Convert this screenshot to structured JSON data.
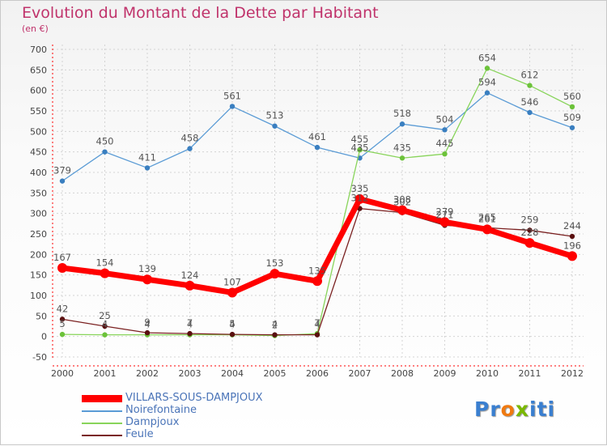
{
  "header": {
    "title": "Evolution du Montant de la Dette par Habitant",
    "subtitle": "(en €)"
  },
  "logo": {
    "text": "Proxiti",
    "letters": [
      "P",
      "r",
      "o",
      "x",
      "i",
      "t",
      "i"
    ],
    "colors": [
      "#3a7fd0",
      "#3a7fd0",
      "#f07a10",
      "#7ab800",
      "#3a7fd0",
      "#3a7fd0",
      "#3a7fd0"
    ]
  },
  "chart_data": {
    "type": "line",
    "x": [
      "2000",
      "2001",
      "2002",
      "2003",
      "2004",
      "2005",
      "2006",
      "2007",
      "2008",
      "2009",
      "2010",
      "2011",
      "2012"
    ],
    "ylim": [
      -50,
      700
    ],
    "yticks": [
      -50,
      0,
      50,
      100,
      150,
      200,
      250,
      300,
      350,
      400,
      450,
      500,
      550,
      600,
      650,
      700
    ],
    "grid": true,
    "legend_placement": "bottom-left",
    "series": [
      {
        "name": "VILLARS-SOUS-DAMPJOUX",
        "color": "#ff0000",
        "values": [
          167,
          154,
          139,
          124,
          107,
          153,
          135,
          335,
          308,
          279,
          261,
          228,
          196
        ]
      },
      {
        "name": "Noirefontaine",
        "color": "#5a9bd5",
        "values": [
          379,
          450,
          411,
          458,
          561,
          513,
          461,
          435,
          518,
          504,
          594,
          546,
          509
        ]
      },
      {
        "name": "Dampjoux",
        "color": "#88d45a",
        "values": [
          5,
          4,
          4,
          4,
          4,
          2,
          7,
          455,
          435,
          445,
          654,
          612,
          560
        ]
      },
      {
        "name": "Feule",
        "color": "#7a2020",
        "values": [
          42,
          25,
          9,
          7,
          5,
          4,
          4,
          312,
          302,
          271,
          265,
          259,
          244
        ]
      }
    ]
  }
}
